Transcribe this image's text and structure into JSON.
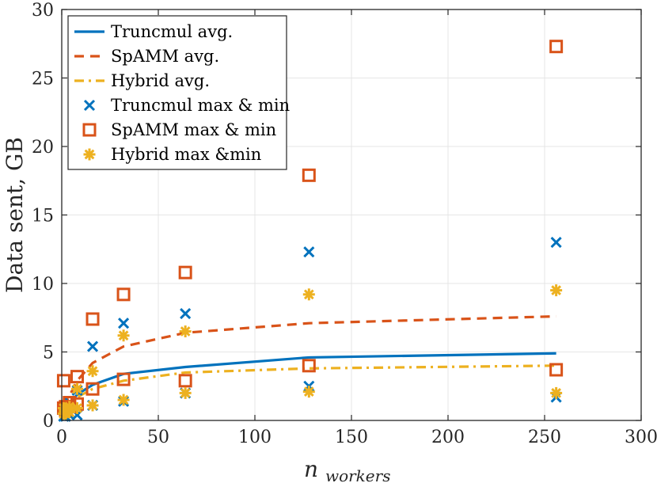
{
  "chart_data": {
    "type": "line",
    "title": "",
    "xlabel_base": "n",
    "xlabel_sub": "workers",
    "ylabel": "Data sent, GB",
    "xlim": [
      0,
      300
    ],
    "ylim": [
      0,
      30
    ],
    "xticks": [
      0,
      50,
      100,
      150,
      200,
      250,
      300
    ],
    "yticks": [
      0,
      5,
      10,
      15,
      20,
      25,
      30
    ],
    "grid": true,
    "legend_position": "top-left",
    "colors": {
      "truncmul": "#0072BD",
      "spamm": "#D95319",
      "hybrid": "#EDB120"
    },
    "series": [
      {
        "name": "Truncmul avg.",
        "kind": "line",
        "style": "solid",
        "color_key": "truncmul",
        "x": [
          1,
          2,
          4,
          8,
          16,
          32,
          64,
          128,
          256
        ],
        "y": [
          0.6,
          0.8,
          1.2,
          1.9,
          2.6,
          3.4,
          3.9,
          4.6,
          4.9
        ]
      },
      {
        "name": "SpAMM avg.",
        "kind": "line",
        "style": "dashed",
        "color_key": "spamm",
        "x": [
          1,
          2,
          4,
          8,
          16,
          32,
          64,
          128,
          256
        ],
        "y": [
          1.0,
          1.3,
          1.8,
          2.9,
          4.2,
          5.4,
          6.4,
          7.1,
          7.6
        ]
      },
      {
        "name": "Hybrid avg.",
        "kind": "line",
        "style": "dashdot",
        "color_key": "hybrid",
        "x": [
          1,
          2,
          4,
          8,
          16,
          32,
          64,
          128,
          256
        ],
        "y": [
          0.6,
          0.8,
          1.2,
          1.7,
          2.3,
          2.9,
          3.5,
          3.8,
          4.0
        ]
      },
      {
        "name": "Truncmul max & min",
        "kind": "marker",
        "marker": "x",
        "color_key": "truncmul",
        "x": [
          1,
          1,
          2,
          2,
          4,
          4,
          8,
          8,
          16,
          16,
          32,
          32,
          64,
          64,
          128,
          128,
          256,
          256
        ],
        "y": [
          0.9,
          0.3,
          0.9,
          0.3,
          1.3,
          0.4,
          2.2,
          0.4,
          5.4,
          1.1,
          7.1,
          1.4,
          7.8,
          2.0,
          12.3,
          2.5,
          13.0,
          1.7
        ]
      },
      {
        "name": "SpAMM max & min",
        "kind": "marker",
        "marker": "square",
        "color_key": "spamm",
        "x": [
          1,
          1,
          2,
          2,
          4,
          4,
          8,
          8,
          16,
          16,
          32,
          32,
          64,
          64,
          128,
          128,
          256,
          256
        ],
        "y": [
          2.9,
          0.9,
          1.0,
          0.8,
          1.3,
          1.0,
          3.2,
          1.2,
          7.4,
          2.3,
          9.2,
          3.0,
          10.8,
          2.9,
          17.9,
          4.0,
          27.3,
          3.7
        ]
      },
      {
        "name": "Hybrid max &min",
        "kind": "marker",
        "marker": "asterisk",
        "color_key": "hybrid",
        "x": [
          1,
          1,
          2,
          2,
          4,
          4,
          8,
          8,
          16,
          16,
          32,
          32,
          64,
          64,
          128,
          128,
          256,
          256
        ],
        "y": [
          0.9,
          0.5,
          0.8,
          0.5,
          1.0,
          0.6,
          2.3,
          0.9,
          3.6,
          1.1,
          6.2,
          1.5,
          6.5,
          2.0,
          9.2,
          2.1,
          9.5,
          2.0
        ]
      }
    ]
  }
}
